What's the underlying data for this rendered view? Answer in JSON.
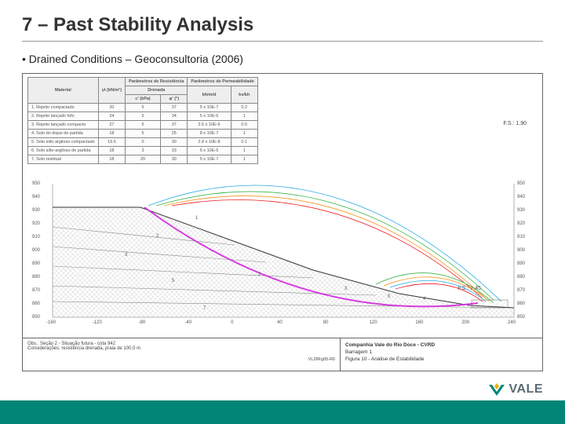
{
  "title": "7 – Past Stability Analysis",
  "subtitle": "• Drained Conditions – Geoconsultoria (2006)",
  "table": {
    "header1": [
      "Material",
      "γt (kN/m³)",
      "Parâmetros de Resistência",
      "",
      "Parâmetros de Permeabilidade",
      ""
    ],
    "header2": [
      "",
      "",
      "Drenada",
      "",
      "",
      ""
    ],
    "header3": [
      "",
      "",
      "c' (kPa)",
      "φ' (°)",
      "kh/m/d",
      "kv/kh"
    ],
    "rows": [
      [
        "1. Rejeito compactado",
        "20",
        "5",
        "37",
        "5 x 10E-7",
        "0.2"
      ],
      [
        "2. Rejeito lançado fofo",
        "24",
        "5",
        "34",
        "5 x 10E-6",
        "1"
      ],
      [
        "3. Rejeito lançado compacto",
        "27",
        "5",
        "37",
        "3.5 x 10E-6",
        "0.5"
      ],
      [
        "4. Solo do dique de partida",
        "18",
        "5",
        "25",
        "8 x 10E-7",
        "1"
      ],
      [
        "5. Solo silto argiloso compactado",
        "19.5",
        "0",
        "30",
        "2.8 x 10E-8",
        "0.1"
      ],
      [
        "6. Solo silto-argiloso de partida",
        "18",
        "3",
        "33",
        "6 x 10E-5",
        "1"
      ],
      [
        "7. Solo residual",
        "18",
        "20",
        "30",
        "5 x 10E-7",
        "1"
      ]
    ]
  },
  "fs_top": "F.S.: 1.90",
  "fs_mid": "F.S.: 1.45",
  "y_ticks": [
    "950",
    "940",
    "930",
    "920",
    "910",
    "900",
    "890",
    "880",
    "870",
    "860",
    "850"
  ],
  "x_ticks": [
    "-160",
    "-120",
    "-80",
    "-40",
    "0",
    "40",
    "80",
    "120",
    "160",
    "200",
    "240"
  ],
  "footer_left_l1": "Obs.: Seção 2 - Situação futura - cota 942",
  "footer_left_l2": "Considerações: resistência drenada, praia de 100,0 m",
  "footer_code": "VL28Fg05-R0",
  "footer_right_l1": "Companhia Vale do Rio Doce - CVRD",
  "footer_right_l2": "Barragem 1",
  "footer_right_l3": "Figura 10 - Análise de Estabilidade",
  "logo_text": "VALE",
  "colors": {
    "bar": "#008576",
    "magenta": "#d63adf",
    "green": "#39b54a",
    "orange": "#f7941e",
    "cyan": "#29abe2",
    "red": "#ed1c24",
    "grey": "#888888"
  }
}
